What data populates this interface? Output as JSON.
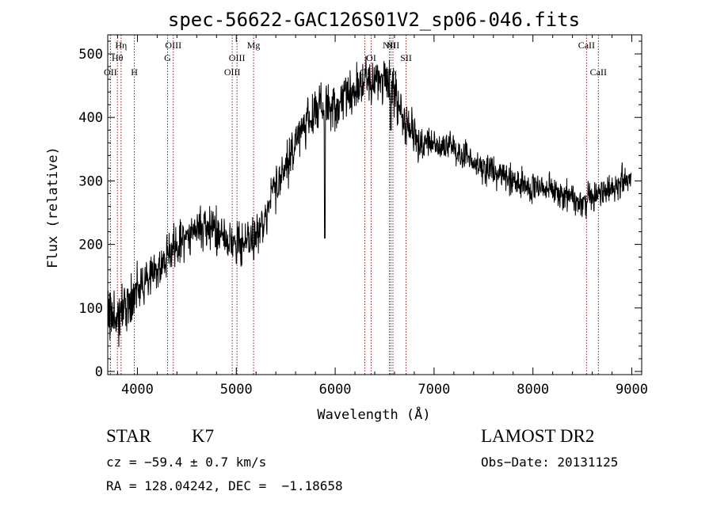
{
  "chart_data": {
    "type": "line",
    "title": "spec-56622-GAC126S01V2_sp06-046.fits",
    "xlabel": "Wavelength (Å)",
    "ylabel": "Flux (relative)",
    "xlim": [
      3700,
      9100
    ],
    "ylim": [
      -5,
      530
    ],
    "x_ticks": [
      4000,
      5000,
      6000,
      7000,
      8000,
      9000
    ],
    "y_ticks": [
      0,
      100,
      200,
      300,
      400,
      500
    ],
    "grid": false,
    "line_color": "#000000",
    "marker_color": "#8b1a1a",
    "continuum": {
      "x": [
        3700,
        3750,
        3800,
        3850,
        3900,
        3950,
        4000,
        4050,
        4100,
        4150,
        4200,
        4250,
        4300,
        4350,
        4400,
        4450,
        4500,
        4550,
        4600,
        4650,
        4700,
        4750,
        4800,
        4850,
        4900,
        4950,
        5000,
        5050,
        5100,
        5150,
        5200,
        5250,
        5300,
        5350,
        5400,
        5450,
        5500,
        5550,
        5600,
        5650,
        5700,
        5750,
        5800,
        5850,
        5900,
        5950,
        6000,
        6050,
        6100,
        6150,
        6200,
        6250,
        6300,
        6350,
        6400,
        6450,
        6500,
        6550,
        6600,
        6650,
        6700,
        6750,
        6800,
        6850,
        6900,
        6950,
        7000,
        7100,
        7200,
        7300,
        7400,
        7500,
        7600,
        7700,
        7800,
        7900,
        8000,
        8100,
        8200,
        8300,
        8400,
        8500,
        8600,
        8700,
        8800,
        8900,
        9000
      ],
      "y": [
        90,
        85,
        90,
        100,
        110,
        118,
        128,
        135,
        142,
        150,
        160,
        170,
        180,
        190,
        200,
        205,
        210,
        215,
        220,
        225,
        225,
        222,
        220,
        215,
        210,
        200,
        200,
        205,
        200,
        200,
        215,
        230,
        250,
        270,
        290,
        300,
        320,
        340,
        360,
        380,
        390,
        400,
        410,
        420,
        420,
        415,
        420,
        425,
        430,
        440,
        445,
        450,
        460,
        455,
        450,
        460,
        465,
        455,
        440,
        410,
        390,
        380,
        370,
        360,
        360,
        358,
        360,
        355,
        350,
        340,
        330,
        320,
        315,
        310,
        300,
        295,
        290,
        290,
        285,
        280,
        270,
        265,
        275,
        280,
        285,
        300,
        310
      ]
    },
    "features": [
      {
        "x": 6563,
        "y": 380
      },
      {
        "x": 5895,
        "y": 210
      }
    ],
    "line_markers": [
      {
        "label": "OII",
        "x": 3727,
        "row": 3
      },
      {
        "label": "Hη",
        "x": 3835,
        "row": 1
      },
      {
        "label": "Hθ",
        "x": 3798,
        "row": 2
      },
      {
        "label": "H",
        "x": 3969,
        "row": 3
      },
      {
        "label": "OIII",
        "x": 4363,
        "row": 1
      },
      {
        "label": "G",
        "x": 4305,
        "row": 2
      },
      {
        "label": "OIII",
        "x": 4959,
        "row": 3
      },
      {
        "label": "OIII",
        "x": 5007,
        "row": 2
      },
      {
        "label": "Mg",
        "x": 5175,
        "row": 1
      },
      {
        "label": "OI",
        "x": 6300,
        "row": 3
      },
      {
        "label": "OI",
        "x": 6364,
        "row": 2
      },
      {
        "label": "NII",
        "x": 6548,
        "row": 1
      },
      {
        "label": "NII",
        "x": 6584,
        "row": 1
      },
      {
        "label": "Hα",
        "x": 6563,
        "row": 3
      },
      {
        "label": "SII",
        "x": 6717,
        "row": 2
      },
      {
        "label": "CaII",
        "x": 8542,
        "row": 1
      },
      {
        "label": "CaII",
        "x": 8662,
        "row": 3
      }
    ]
  },
  "info": {
    "class": "STAR",
    "subclass": "K7",
    "survey": "LAMOST DR2",
    "cz": "cz = −59.4 ± 0.7 km/s",
    "obs_date": "Obs−Date: 20131125",
    "coords": "RA = 128.04242, DEC =  −1.18658"
  }
}
